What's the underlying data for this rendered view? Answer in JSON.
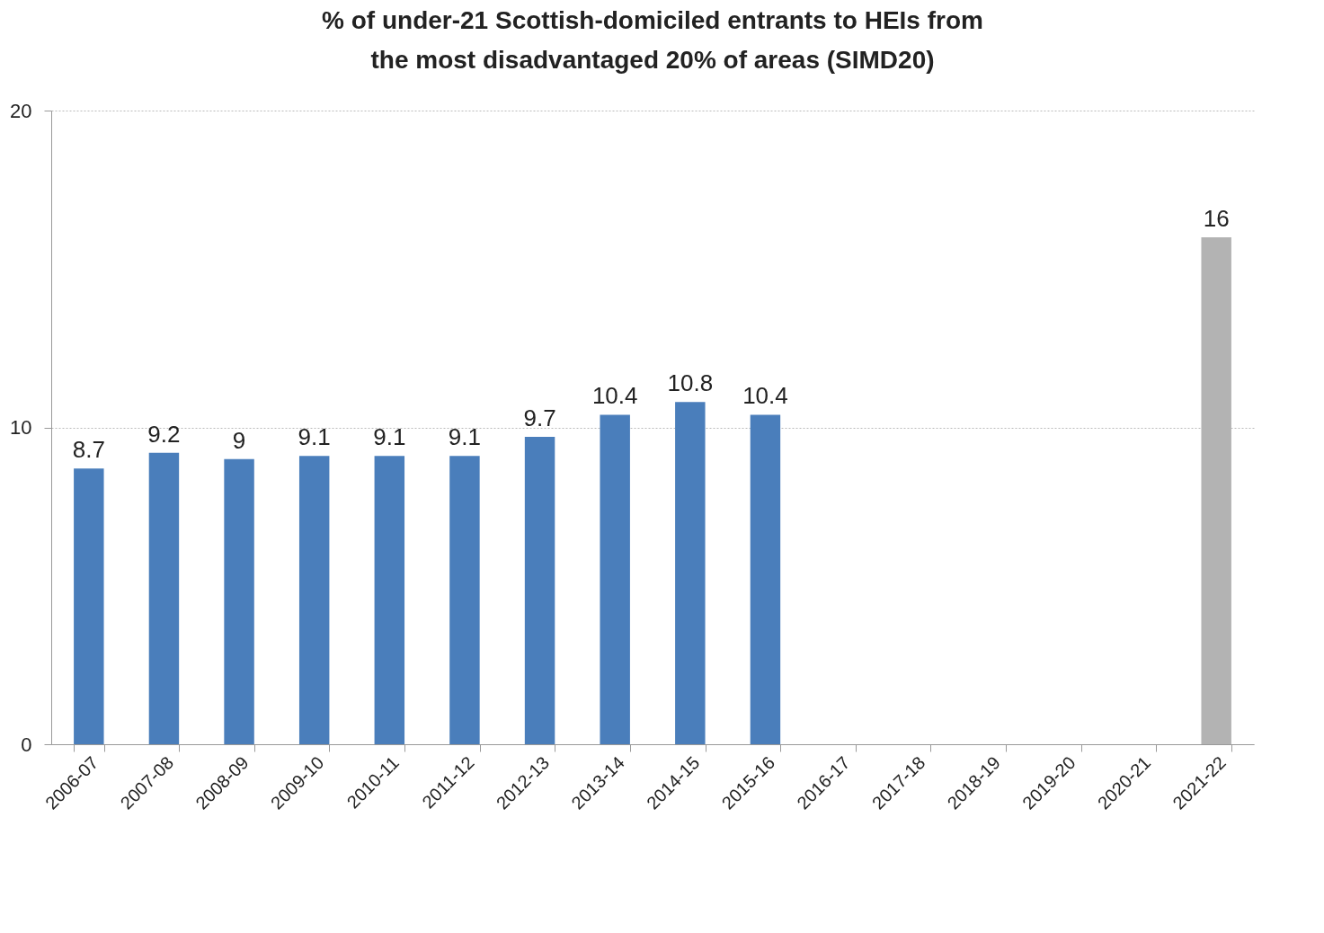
{
  "chart_data": {
    "type": "bar",
    "title": "% of under-21 Scottish-domiciled entrants to HEIs from the most disadvantaged 20% of areas (SIMD20)",
    "categories": [
      "2006-07",
      "2007-08",
      "2008-09",
      "2009-10",
      "2010-11",
      "2011-12",
      "2012-13",
      "2013-14",
      "2014-15",
      "2015-16",
      "2016-17",
      "2017-18",
      "2018-19",
      "2019-20",
      "2020-21",
      "2021-22"
    ],
    "values": [
      8.7,
      9.2,
      9,
      9.1,
      9.1,
      9.1,
      9.7,
      10.4,
      10.8,
      10.4,
      null,
      null,
      null,
      null,
      null,
      16
    ],
    "colors": [
      "#4a7ebb",
      "#4a7ebb",
      "#4a7ebb",
      "#4a7ebb",
      "#4a7ebb",
      "#4a7ebb",
      "#4a7ebb",
      "#4a7ebb",
      "#4a7ebb",
      "#4a7ebb",
      "#4a7ebb",
      "#4a7ebb",
      "#4a7ebb",
      "#4a7ebb",
      "#4a7ebb",
      "#b3b3b3"
    ],
    "ylim": [
      0,
      20
    ],
    "yticks": [
      0,
      10,
      20
    ],
    "grid": "y",
    "data_labels": true
  }
}
